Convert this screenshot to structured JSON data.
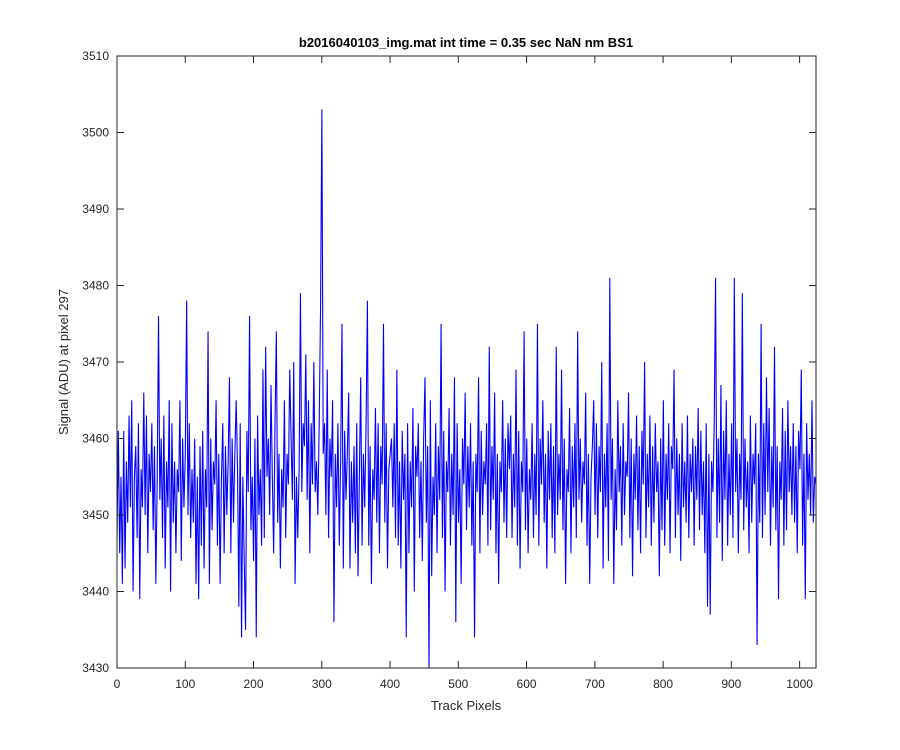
{
  "chart_data": {
    "type": "line",
    "title": "b2016040103_img.mat int time = 0.35 sec  NaN nm BS1",
    "xlabel": "Track Pixels",
    "ylabel": "Signal (ADU) at pixel 297",
    "xlim": [
      0,
      1024
    ],
    "ylim": [
      3430,
      3510
    ],
    "xticks": [
      0,
      100,
      200,
      300,
      400,
      500,
      600,
      700,
      800,
      900,
      1000
    ],
    "yticks": [
      3430,
      3440,
      3450,
      3460,
      3470,
      3480,
      3490,
      3500,
      3510
    ],
    "grid": false,
    "line_color": "#0000ff",
    "series": [
      {
        "values": [
          3447,
          3461,
          3445,
          3455,
          3441,
          3461,
          3443,
          3457,
          3449,
          3463,
          3451,
          3465,
          3440,
          3455,
          3459,
          3447,
          3462,
          3439,
          3456,
          3451,
          3466,
          3450,
          3463,
          3445,
          3458,
          3453,
          3462,
          3448,
          3459,
          3441,
          3454,
          3476,
          3452,
          3460,
          3447,
          3463,
          3443,
          3457,
          3451,
          3465,
          3440,
          3462,
          3449,
          3457,
          3445,
          3456,
          3453,
          3465,
          3444,
          3460,
          3451,
          3458,
          3478,
          3450,
          3462,
          3447,
          3456,
          3449,
          3460,
          3441,
          3455,
          3439,
          3459,
          3446,
          3461,
          3443,
          3456,
          3451,
          3474,
          3441,
          3460,
          3448,
          3457,
          3454,
          3465,
          3446,
          3458,
          3441,
          3455,
          3462,
          3445,
          3459,
          3450,
          3457,
          3468,
          3445,
          3460,
          3449,
          3458,
          3465,
          3456,
          3438,
          3462,
          3434,
          3455,
          3444,
          3435,
          3461,
          3453,
          3476,
          3448,
          3455,
          3444,
          3460,
          3434,
          3463,
          3450,
          3456,
          3446,
          3469,
          3447,
          3472,
          3455,
          3460,
          3450,
          3467,
          3455,
          3445,
          3462,
          3474,
          3449,
          3458,
          3443,
          3456,
          3451,
          3465,
          3447,
          3458,
          3454,
          3469,
          3460,
          3452,
          3470,
          3441,
          3455,
          3447,
          3456,
          3479,
          3453,
          3462,
          3459,
          3471,
          3452,
          3465,
          3445,
          3462,
          3454,
          3470,
          3453,
          3457,
          3450,
          3462,
          3477,
          3503,
          3458,
          3462,
          3450,
          3469,
          3447,
          3460,
          3455,
          3465,
          3436,
          3458,
          3451,
          3462,
          3446,
          3457,
          3475,
          3443,
          3461,
          3452,
          3458,
          3466,
          3443,
          3457,
          3449,
          3459,
          3445,
          3462,
          3442,
          3455,
          3468,
          3446,
          3458,
          3451,
          3462,
          3478,
          3446,
          3459,
          3441,
          3456,
          3452,
          3464,
          3449,
          3462,
          3445,
          3459,
          3454,
          3475,
          3449,
          3462,
          3443,
          3456,
          3458,
          3460,
          3451,
          3462,
          3447,
          3469,
          3446,
          3457,
          3443,
          3461,
          3452,
          3458,
          3434,
          3462,
          3445,
          3457,
          3451,
          3464,
          3440,
          3459,
          3455,
          3462,
          3447,
          3457,
          3444,
          3460,
          3468,
          3449,
          3459,
          3430,
          3465,
          3442,
          3455,
          3450,
          3462,
          3445,
          3459,
          3452,
          3475,
          3447,
          3461,
          3440,
          3457,
          3453,
          3464,
          3446,
          3458,
          3450,
          3468,
          3436,
          3462,
          3449,
          3456,
          3441,
          3460,
          3454,
          3466,
          3448,
          3459,
          3451,
          3462,
          3446,
          3457,
          3434,
          3458,
          3453,
          3468,
          3445,
          3461,
          3450,
          3457,
          3454,
          3462,
          3446,
          3472,
          3448,
          3459,
          3452,
          3466,
          3445,
          3458,
          3441,
          3457,
          3453,
          3465,
          3449,
          3460,
          3447,
          3462,
          3456,
          3463,
          3447,
          3458,
          3451,
          3469,
          3446,
          3461,
          3443,
          3457,
          3453,
          3474,
          3448,
          3460,
          3445,
          3456,
          3452,
          3462,
          3447,
          3458,
          3450,
          3475,
          3446,
          3460,
          3454,
          3465,
          3449,
          3458,
          3443,
          3461,
          3452,
          3462,
          3447,
          3459,
          3445,
          3472,
          3450,
          3458,
          3452,
          3469,
          3448,
          3460,
          3441,
          3456,
          3453,
          3464,
          3445,
          3459,
          3451,
          3462,
          3447,
          3474,
          3452,
          3460,
          3449,
          3457,
          3454,
          3466,
          3446,
          3458,
          3441,
          3455,
          3459,
          3465,
          3450,
          3462,
          3447,
          3459,
          3453,
          3470,
          3443,
          3458,
          3451,
          3462,
          3444,
          3481,
          3452,
          3460,
          3441,
          3456,
          3448,
          3465,
          3453,
          3459,
          3446,
          3462,
          3450,
          3457,
          3455,
          3466,
          3447,
          3460,
          3442,
          3458,
          3452,
          3463,
          3448,
          3459,
          3445,
          3461,
          3454,
          3470,
          3447,
          3458,
          3451,
          3463,
          3446,
          3459,
          3449,
          3462,
          3453,
          3457,
          3442,
          3460,
          3448,
          3465,
          3446,
          3458,
          3452,
          3462,
          3445,
          3459,
          3456,
          3469,
          3447,
          3460,
          3450,
          3458,
          3444,
          3462,
          3451,
          3457,
          3449,
          3463,
          3447,
          3458,
          3453,
          3460,
          3446,
          3459,
          3452,
          3464,
          3448,
          3461,
          3450,
          3457,
          3445,
          3462,
          3438,
          3458,
          3437,
          3457,
          3453,
          3462,
          3481,
          3447,
          3460,
          3449,
          3467,
          3444,
          3461,
          3452,
          3465,
          3446,
          3458,
          3450,
          3462,
          3447,
          3481,
          3453,
          3460,
          3445,
          3458,
          3452,
          3479,
          3448,
          3460,
          3451,
          3457,
          3445,
          3463,
          3449,
          3458,
          3454,
          3462,
          3433,
          3458,
          3449,
          3475,
          3447,
          3462,
          3450,
          3468,
          3453,
          3464,
          3446,
          3459,
          3451,
          3472,
          3448,
          3459,
          3439,
          3457,
          3452,
          3464,
          3446,
          3461,
          3448,
          3465,
          3453,
          3459,
          3450,
          3462,
          3449,
          3459,
          3445,
          3461,
          3456,
          3469,
          3446,
          3458,
          3439,
          3462,
          3452,
          3458,
          3450,
          3465,
          3449,
          3455,
          3454
        ]
      }
    ]
  }
}
